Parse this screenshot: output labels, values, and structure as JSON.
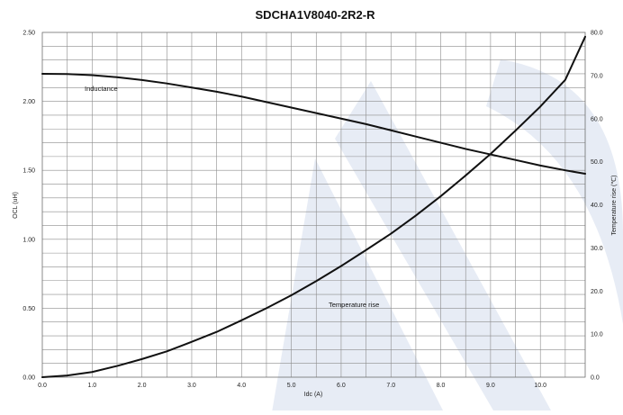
{
  "chart_data": {
    "type": "line",
    "title": "SDCHA1V8040-2R2-R",
    "xlabel": "Idc (A)",
    "ylabel": "OCL (uH)",
    "y2label": "Temperature rise (℃)",
    "xlim": [
      0,
      10.9
    ],
    "ylim": [
      0,
      2.5
    ],
    "y2lim": [
      0,
      80
    ],
    "x_ticks": [
      "0.0",
      "1.0",
      "2.0",
      "3.0",
      "4.0",
      "5.0",
      "6.0",
      "7.0",
      "8.0",
      "9.0",
      "10.0"
    ],
    "y_ticks": [
      "0.00",
      "0.50",
      "1.00",
      "1.50",
      "2.00",
      "2.50"
    ],
    "y2_ticks": [
      "0.0",
      "10.0",
      "20.0",
      "30.0",
      "40.0",
      "50.0",
      "60.0",
      "70.0",
      "80.0"
    ],
    "grid": true,
    "series": [
      {
        "name": "Inductance",
        "axis": "left",
        "color": "#111111",
        "x": [
          0,
          0.5,
          1,
          1.5,
          2,
          2.5,
          3,
          3.5,
          4,
          4.5,
          5,
          5.5,
          6,
          6.5,
          7,
          7.5,
          8,
          8.5,
          9,
          9.5,
          10,
          10.5,
          10.9
        ],
        "y": [
          2.2,
          2.198,
          2.19,
          2.175,
          2.155,
          2.13,
          2.1,
          2.07,
          2.035,
          1.995,
          1.955,
          1.915,
          1.875,
          1.835,
          1.79,
          1.745,
          1.7,
          1.655,
          1.615,
          1.575,
          1.535,
          1.5,
          1.475
        ]
      },
      {
        "name": "Temperature rise",
        "axis": "right",
        "color": "#111111",
        "x": [
          0,
          0.5,
          1,
          1.5,
          2,
          2.5,
          3,
          3.5,
          4,
          4.5,
          5,
          5.5,
          6,
          6.5,
          7,
          7.5,
          8,
          8.5,
          9,
          9.5,
          10,
          10.5,
          10.9
        ],
        "y": [
          0,
          0.4,
          1.2,
          2.6,
          4.2,
          6.0,
          8.2,
          10.5,
          13.2,
          16.0,
          19.0,
          22.3,
          25.8,
          29.5,
          33.3,
          37.5,
          42.0,
          46.8,
          51.8,
          57.2,
          62.8,
          69.0,
          79.0
        ]
      }
    ],
    "annotations": [
      {
        "text": "Inductance",
        "x": 0.85,
        "y": 2.05,
        "axis": "left"
      },
      {
        "text": "Temperature rise",
        "x": 5.7,
        "y": 16.5,
        "axis": "right"
      }
    ]
  }
}
